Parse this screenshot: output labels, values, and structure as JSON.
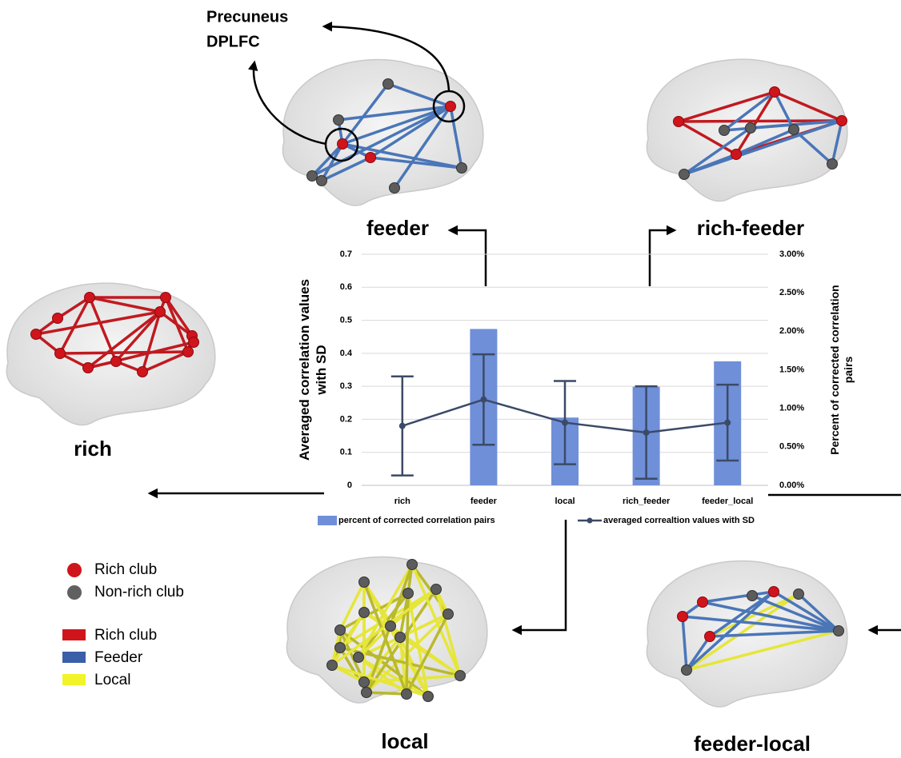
{
  "chart_data": {
    "type": "bar",
    "y_label": [
      "Averaged correlation values",
      "with SD"
    ],
    "y2_label": [
      "Percent of corrected correlation",
      "pairs"
    ],
    "categories": [
      "rich",
      "feeder",
      "local",
      "rich_feeder",
      "feeder_local"
    ],
    "series": [
      {
        "name": "percent of corrected correlation pairs",
        "type": "bar",
        "axis": "y2",
        "color": "#6f8fd8",
        "values": [
          0,
          2.03,
          0.88,
          1.28,
          1.61
        ]
      },
      {
        "name": "averaged correaltion values with SD",
        "type": "line",
        "color": "#3b4a66",
        "values": [
          0.18,
          0.26,
          0.19,
          0.16,
          0.19
        ],
        "errors": [
          0.15,
          0.137,
          0.126,
          0.14,
          0.115
        ]
      }
    ],
    "ylim": [
      0,
      0.7
    ],
    "yticks": [
      0,
      0.1,
      0.2,
      0.3,
      0.4,
      0.5,
      0.6,
      0.7
    ],
    "y2lim": [
      0,
      3
    ],
    "y2ticks": [
      {
        "value": 0,
        "label": "0.00%"
      },
      {
        "value": 0.5,
        "label": "0.50%"
      },
      {
        "value": 1,
        "label": "1.00%"
      },
      {
        "value": 1.5,
        "label": "1.50%"
      },
      {
        "value": 2,
        "label": "2.00%"
      },
      {
        "value": 2.5,
        "label": "2.50%"
      },
      {
        "value": 3,
        "label": "3.00%"
      }
    ],
    "grid": true,
    "legend": "bottom"
  },
  "panels": {
    "feeder": "feeder",
    "rich_feeder": "rich-feeder",
    "rich": "rich",
    "local": "local",
    "feeder_local": "feeder-local"
  },
  "annotation": [
    "Precuneus",
    "DPLFC"
  ],
  "network_legend": {
    "nodes": [
      "Rich club",
      "Non-rich club"
    ],
    "edges": [
      "Rich club",
      "Feeder",
      "Local"
    ]
  }
}
